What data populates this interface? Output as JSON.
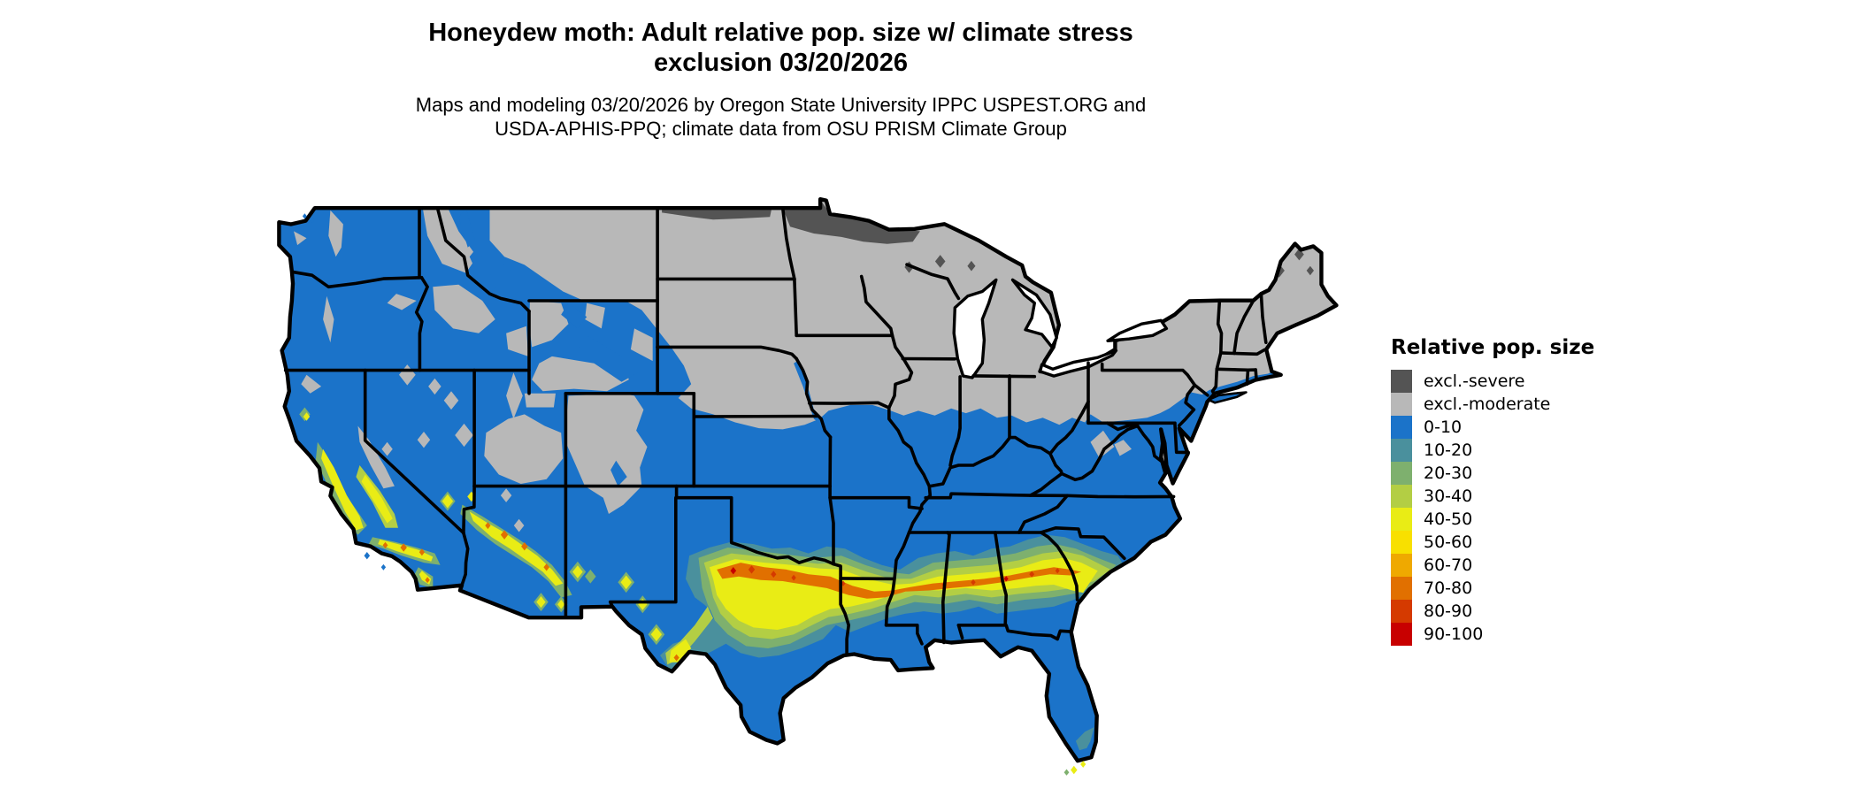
{
  "title": {
    "line1": "Honeydew moth: Adult relative pop. size w/ climate stress",
    "line2": "exclusion 03/20/2026"
  },
  "subtitle": {
    "line1": "Maps and modeling 03/20/2026 by Oregon State University IPPC USPEST.ORG and",
    "line2": "USDA-APHIS-PPQ; climate data from OSU PRISM Climate Group"
  },
  "legend": {
    "title": "Relative pop. size",
    "items": [
      {
        "label": "excl.-severe",
        "key": "excl_severe"
      },
      {
        "label": "excl.-moderate",
        "key": "excl_moderate"
      },
      {
        "label": "0-10",
        "key": "v0"
      },
      {
        "label": "10-20",
        "key": "v10"
      },
      {
        "label": "20-30",
        "key": "v20"
      },
      {
        "label": "30-40",
        "key": "v30"
      },
      {
        "label": "40-50",
        "key": "v40"
      },
      {
        "label": "50-60",
        "key": "v50"
      },
      {
        "label": "60-70",
        "key": "v60"
      },
      {
        "label": "70-80",
        "key": "v70"
      },
      {
        "label": "80-90",
        "key": "v80"
      },
      {
        "label": "90-100",
        "key": "v90"
      }
    ]
  },
  "palette": {
    "excl_severe": "#545454",
    "excl_moderate": "#B8B8B8",
    "v0": "#1B73C9",
    "v10": "#4A909D",
    "v20": "#7EB06E",
    "v30": "#B3CE44",
    "v40": "#E9EC15",
    "v50": "#F8E000",
    "v60": "#EFA900",
    "v70": "#E17000",
    "v80": "#D53A00",
    "v90": "#C80000",
    "border": "#000000",
    "water": "#FFFFFF"
  }
}
